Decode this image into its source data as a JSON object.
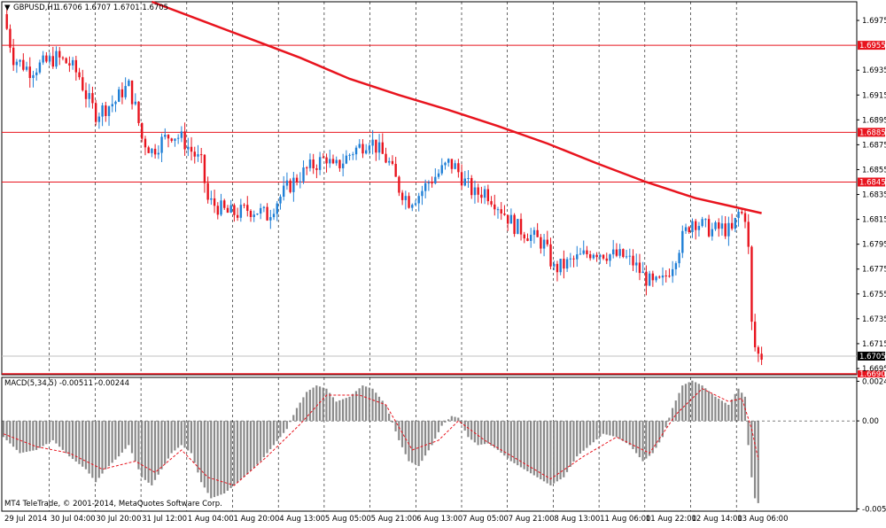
{
  "header": {
    "symbol_label": "GBPUSD,H1",
    "ohlc": "1.6706 1.6707 1.6701 1.6705"
  },
  "indicator": {
    "label": "MACD(5,34,5) -0.00511 -0.00244"
  },
  "footer": {
    "copyright": "MT4 TeleTrade, © 2001-2014, MetaQuotes Software Corp."
  },
  "colors": {
    "background": "#ffffff",
    "bull": "#1f7fd6",
    "bear": "#e8141e",
    "ma": "#e8141e",
    "level_line": "#e8141e",
    "macd_hist": "#8a8a8a",
    "signal": "#e8141e",
    "grid": "#000000"
  },
  "chart_data": [
    {
      "type": "candlestick",
      "title": "GBPUSD,H1",
      "ylim": [
        1.669,
        1.699
      ],
      "y_ticks": [
        "1.6975",
        "1.6935",
        "1.6915",
        "1.6895",
        "1.6875",
        "1.6855",
        "1.6835",
        "1.6815",
        "1.6795",
        "1.6775",
        "1.6755",
        "1.6735",
        "1.6715",
        "1.6695"
      ],
      "horizontal_levels": [
        {
          "price": "1.6955",
          "kind": "resistance"
        },
        {
          "price": "1.6885",
          "kind": "resistance"
        },
        {
          "price": "1.6845",
          "kind": "resistance"
        },
        {
          "price": "1.6705",
          "kind": "current"
        },
        {
          "price": "1.6690",
          "kind": "low"
        }
      ],
      "x_labels": [
        "29 Jul 2014",
        "30 Jul 04:00",
        "30 Jul 20:00",
        "31 Jul 12:00",
        "1 Aug 04:00",
        "1 Aug 20:00",
        "4 Aug 13:00",
        "5 Aug 05:00",
        "5 Aug 21:00",
        "6 Aug 13:00",
        "7 Aug 05:00",
        "7 Aug 21:00",
        "8 Aug 13:00",
        "11 Aug 06:00",
        "11 Aug 22:00",
        "12 Aug 14:00",
        "13 Aug 06:00"
      ],
      "close_path": [
        [
          0,
          1.698
        ],
        [
          3,
          1.6945
        ],
        [
          8,
          1.6935
        ],
        [
          12,
          1.694
        ],
        [
          16,
          1.6945
        ],
        [
          20,
          1.694
        ],
        [
          23,
          1.693
        ],
        [
          25,
          1.6915
        ],
        [
          28,
          1.69
        ],
        [
          31,
          1.6905
        ],
        [
          34,
          1.691
        ],
        [
          36,
          1.6918
        ],
        [
          38,
          1.6922
        ],
        [
          40,
          1.6905
        ],
        [
          42,
          1.688
        ],
        [
          45,
          1.687
        ],
        [
          48,
          1.6878
        ],
        [
          51,
          1.6884
        ],
        [
          54,
          1.688
        ],
        [
          57,
          1.687
        ],
        [
          60,
          1.686
        ],
        [
          62,
          1.683
        ],
        [
          65,
          1.6825
        ],
        [
          68,
          1.682
        ],
        [
          71,
          1.682
        ],
        [
          74,
          1.6823
        ],
        [
          77,
          1.6822
        ],
        [
          80,
          1.6818
        ],
        [
          83,
          1.683
        ],
        [
          86,
          1.684
        ],
        [
          89,
          1.6848
        ],
        [
          92,
          1.6855
        ],
        [
          95,
          1.686
        ],
        [
          98,
          1.6865
        ],
        [
          100,
          1.6855
        ],
        [
          103,
          1.6862
        ],
        [
          106,
          1.687
        ],
        [
          109,
          1.6875
        ],
        [
          111,
          1.688
        ],
        [
          114,
          1.687
        ],
        [
          117,
          1.686
        ],
        [
          120,
          1.684
        ],
        [
          123,
          1.683
        ],
        [
          126,
          1.6835
        ],
        [
          129,
          1.6845
        ],
        [
          132,
          1.6852
        ],
        [
          135,
          1.686
        ],
        [
          137,
          1.6857
        ],
        [
          140,
          1.6845
        ],
        [
          143,
          1.6835
        ],
        [
          146,
          1.6838
        ],
        [
          149,
          1.683
        ],
        [
          152,
          1.682
        ],
        [
          155,
          1.681
        ],
        [
          158,
          1.6805
        ],
        [
          161,
          1.68
        ],
        [
          164,
          1.6795
        ],
        [
          167,
          1.6775
        ],
        [
          170,
          1.6778
        ],
        [
          173,
          1.6782
        ],
        [
          176,
          1.6786
        ],
        [
          179,
          1.679
        ],
        [
          182,
          1.6788
        ],
        [
          185,
          1.6786
        ],
        [
          188,
          1.6785
        ],
        [
          191,
          1.678
        ],
        [
          194,
          1.677
        ],
        [
          197,
          1.6762
        ],
        [
          200,
          1.6765
        ],
        [
          203,
          1.678
        ],
        [
          206,
          1.68
        ],
        [
          209,
          1.6815
        ],
        [
          212,
          1.681
        ],
        [
          215,
          1.6806
        ],
        [
          218,
          1.6808
        ],
        [
          221,
          1.6805
        ],
        [
          223,
          1.682
        ],
        [
          225,
          1.6818
        ],
        [
          226,
          1.679
        ],
        [
          227,
          1.673
        ],
        [
          228,
          1.6712
        ],
        [
          229,
          1.6706
        ],
        [
          230,
          1.6705
        ]
      ],
      "ma_path": [
        [
          45,
          1.699
        ],
        [
          60,
          1.6975
        ],
        [
          75,
          1.696
        ],
        [
          90,
          1.6945
        ],
        [
          105,
          1.6928
        ],
        [
          120,
          1.6915
        ],
        [
          135,
          1.6903
        ],
        [
          150,
          1.689
        ],
        [
          165,
          1.6876
        ],
        [
          180,
          1.686
        ],
        [
          195,
          1.6845
        ],
        [
          210,
          1.6832
        ],
        [
          220,
          1.6826
        ],
        [
          230,
          1.682
        ]
      ]
    },
    {
      "type": "bar",
      "title": "MACD(5,34,5) -0.00511 -0.00244",
      "ylim": [
        -0.0056,
        0.0027
      ],
      "y_ticks": [
        "0.00246",
        "0.00",
        "-0.00546"
      ],
      "histogram_path": [
        [
          0,
          -0.001
        ],
        [
          5,
          -0.002
        ],
        [
          10,
          -0.0018
        ],
        [
          15,
          -0.0012
        ],
        [
          20,
          -0.0022
        ],
        [
          25,
          -0.003
        ],
        [
          28,
          -0.0038
        ],
        [
          31,
          -0.003
        ],
        [
          35,
          -0.0022
        ],
        [
          38,
          -0.0015
        ],
        [
          42,
          -0.0035
        ],
        [
          45,
          -0.004
        ],
        [
          48,
          -0.003
        ],
        [
          51,
          -0.002
        ],
        [
          54,
          -0.0015
        ],
        [
          57,
          -0.002
        ],
        [
          60,
          -0.0038
        ],
        [
          63,
          -0.0048
        ],
        [
          67,
          -0.0045
        ],
        [
          70,
          -0.004
        ],
        [
          74,
          -0.0033
        ],
        [
          78,
          -0.0025
        ],
        [
          82,
          -0.0015
        ],
        [
          86,
          -0.0005
        ],
        [
          89,
          0.0008
        ],
        [
          92,
          0.0018
        ],
        [
          95,
          0.0022
        ],
        [
          98,
          0.002
        ],
        [
          101,
          0.0012
        ],
        [
          105,
          0.0015
        ],
        [
          109,
          0.0022
        ],
        [
          112,
          0.002
        ],
        [
          116,
          0.001
        ],
        [
          120,
          -0.0012
        ],
        [
          123,
          -0.0025
        ],
        [
          126,
          -0.0028
        ],
        [
          130,
          -0.0015
        ],
        [
          133,
          -0.0003
        ],
        [
          136,
          0.0003
        ],
        [
          138,
          0.0002
        ],
        [
          141,
          -0.001
        ],
        [
          144,
          -0.0015
        ],
        [
          147,
          -0.0014
        ],
        [
          150,
          -0.0018
        ],
        [
          154,
          -0.0025
        ],
        [
          158,
          -0.003
        ],
        [
          162,
          -0.0035
        ],
        [
          166,
          -0.004
        ],
        [
          170,
          -0.0035
        ],
        [
          174,
          -0.0022
        ],
        [
          178,
          -0.0015
        ],
        [
          182,
          -0.0008
        ],
        [
          186,
          -0.001
        ],
        [
          190,
          -0.0015
        ],
        [
          194,
          -0.0025
        ],
        [
          197,
          -0.002
        ],
        [
          200,
          -0.001
        ],
        [
          203,
          0.0008
        ],
        [
          206,
          0.0022
        ],
        [
          209,
          0.0025
        ],
        [
          212,
          0.0022
        ],
        [
          216,
          0.0015
        ],
        [
          220,
          0.001
        ],
        [
          223,
          0.002
        ],
        [
          225,
          0.0015
        ],
        [
          226,
          -0.0015
        ],
        [
          227,
          -0.0035
        ],
        [
          228,
          -0.0048
        ],
        [
          229,
          -0.0051
        ]
      ],
      "signal_path": [
        [
          0,
          -0.0008
        ],
        [
          10,
          -0.0016
        ],
        [
          20,
          -0.002
        ],
        [
          30,
          -0.003
        ],
        [
          40,
          -0.0025
        ],
        [
          46,
          -0.0032
        ],
        [
          54,
          -0.0018
        ],
        [
          62,
          -0.0035
        ],
        [
          70,
          -0.004
        ],
        [
          80,
          -0.0022
        ],
        [
          90,
          -0.0002
        ],
        [
          98,
          0.0016
        ],
        [
          108,
          0.0016
        ],
        [
          116,
          0.001
        ],
        [
          124,
          -0.0018
        ],
        [
          132,
          -0.0012
        ],
        [
          138,
          0.0
        ],
        [
          146,
          -0.0012
        ],
        [
          156,
          -0.0024
        ],
        [
          166,
          -0.0036
        ],
        [
          176,
          -0.0022
        ],
        [
          186,
          -0.001
        ],
        [
          196,
          -0.002
        ],
        [
          204,
          0.0004
        ],
        [
          212,
          0.002
        ],
        [
          220,
          0.0012
        ],
        [
          224,
          0.0014
        ],
        [
          227,
          -0.0005
        ],
        [
          229,
          -0.0024
        ]
      ]
    }
  ]
}
